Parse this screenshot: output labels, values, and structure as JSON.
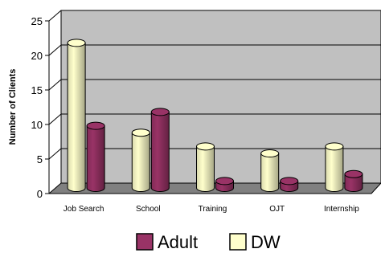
{
  "chart_data": {
    "type": "bar",
    "categories": [
      "Job Search",
      "School",
      "Training",
      "OJT",
      "Internship"
    ],
    "series": [
      {
        "name": "DW",
        "values": [
          21,
          8,
          6,
          5,
          6
        ],
        "color": "#ffffcc"
      },
      {
        "name": "Adult",
        "values": [
          9,
          11,
          1,
          1,
          2
        ],
        "color": "#993366"
      }
    ],
    "ylabel": "Number of Clients",
    "xlabel": "",
    "yticks": [
      "0",
      "5",
      "10",
      "15",
      "20",
      "25"
    ],
    "ylim": [
      0,
      25
    ],
    "grid": true,
    "legend": {
      "placement": "bottom",
      "entries": [
        "Adult",
        "DW"
      ]
    },
    "wall_color": "#c0c0c0",
    "floor_color": "#808080"
  }
}
